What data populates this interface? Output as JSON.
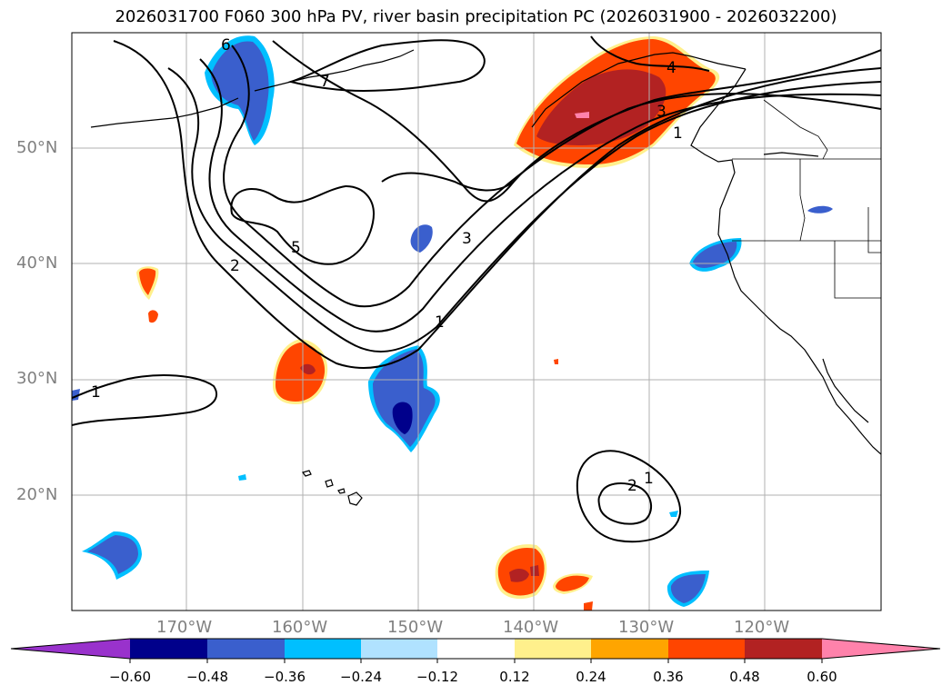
{
  "title": "2026031700 F060 300 hPa PV, river basin precipitation PC (2026031900 - 2026032200)",
  "lat_labels": [
    "50°N",
    "40°N",
    "30°N",
    "20°N"
  ],
  "lon_labels": [
    "170°W",
    "160°W",
    "150°W",
    "140°W",
    "130°W",
    "120°W"
  ],
  "contour_labels": [
    "7",
    "6",
    "5",
    "4",
    "3",
    "2",
    "1",
    "1",
    "1",
    "2",
    "1",
    "3"
  ],
  "colorbar": {
    "ticks": [
      "−0.60",
      "−0.48",
      "−0.36",
      "−0.24",
      "−0.12",
      "0.12",
      "0.24",
      "0.36",
      "0.48",
      "0.60"
    ],
    "colors": [
      "#9932cc",
      "#00008b",
      "#3a5fcd",
      "#00bfff",
      "#b0e2ff",
      "#ffffff",
      "#fff08c",
      "#ffa500",
      "#ff4500",
      "#b22222",
      "#ff82ab"
    ]
  },
  "colors": {
    "neg_strong": "#00008b",
    "neg_mid": "#3a5fcd",
    "neg_light": "#00bfff",
    "pos_light": "#fff08c",
    "pos_mid": "#ffa500",
    "pos_strong": "#ff4500",
    "pos_dark": "#b22222",
    "pos_max": "#ff82ab"
  }
}
